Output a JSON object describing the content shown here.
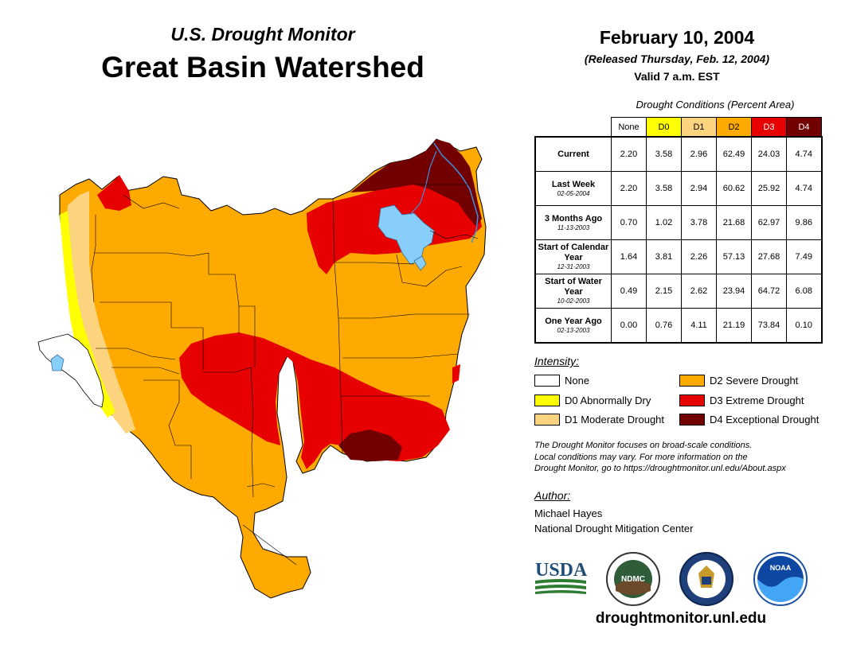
{
  "header": {
    "subtitle": "U.S. Drought Monitor",
    "title": "Great Basin Watershed",
    "date": "February 10, 2004",
    "released": "(Released Thursday, Feb. 12, 2004)",
    "valid": "Valid 7 a.m. EST"
  },
  "table": {
    "caption": "Drought Conditions (Percent Area)",
    "columns": [
      "None",
      "D0",
      "D1",
      "D2",
      "D3",
      "D4"
    ],
    "column_colors": [
      "#ffffff",
      "#ffff00",
      "#fcd37f",
      "#ffaa00",
      "#e60000",
      "#730000"
    ],
    "rows": [
      {
        "label": "Current",
        "date": "",
        "values": [
          "2.20",
          "3.58",
          "2.96",
          "62.49",
          "24.03",
          "4.74"
        ]
      },
      {
        "label": "Last Week",
        "date": "02-05-2004",
        "values": [
          "2.20",
          "3.58",
          "2.94",
          "60.62",
          "25.92",
          "4.74"
        ]
      },
      {
        "label": "3 Months Ago",
        "date": "11-13-2003",
        "values": [
          "0.70",
          "1.02",
          "3.78",
          "21.68",
          "62.97",
          "9.86"
        ]
      },
      {
        "label": "Start of Calendar Year",
        "date": "12-31-2003",
        "values": [
          "1.64",
          "3.81",
          "2.26",
          "57.13",
          "27.68",
          "7.49"
        ]
      },
      {
        "label": "Start of Water Year",
        "date": "10-02-2003",
        "values": [
          "0.49",
          "2.15",
          "2.62",
          "23.94",
          "64.72",
          "6.08"
        ]
      },
      {
        "label": "One Year Ago",
        "date": "02-13-2003",
        "values": [
          "0.00",
          "0.76",
          "4.11",
          "21.19",
          "73.84",
          "0.10"
        ]
      }
    ]
  },
  "legend": {
    "title": "Intensity:",
    "items": [
      {
        "label": "None",
        "color": "#ffffff"
      },
      {
        "label": "D0 Abnormally Dry",
        "color": "#ffff00"
      },
      {
        "label": "D1 Moderate Drought",
        "color": "#fcd37f"
      },
      {
        "label": "D2 Severe Drought",
        "color": "#ffaa00"
      },
      {
        "label": "D3 Extreme Drought",
        "color": "#e60000"
      },
      {
        "label": "D4 Exceptional Drought",
        "color": "#730000"
      }
    ]
  },
  "note": {
    "line1": "The Drought Monitor focuses on broad-scale conditions.",
    "line2": "Local conditions may vary. For more information on the",
    "line3": "Drought Monitor, go to https://droughtmonitor.unl.edu/About.aspx"
  },
  "author": {
    "label": "Author:",
    "name": "Michael Hayes",
    "org": "National Drought Mitigation Center"
  },
  "logos": {
    "usda": "USDA",
    "ndmc": "NDMC",
    "noaa": "NOAA"
  },
  "map": {
    "water_color": "#87cefa",
    "river_color": "#3b8fe0"
  },
  "footer": {
    "website": "droughtmonitor.unl.edu"
  }
}
